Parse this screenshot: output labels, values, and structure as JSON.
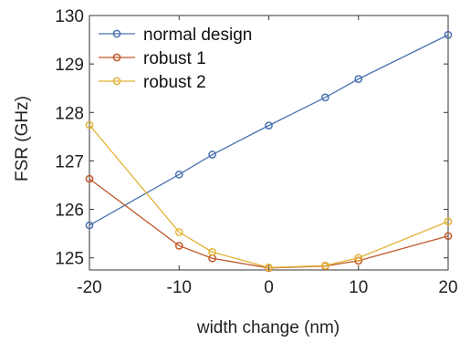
{
  "chart_data": {
    "type": "line",
    "title": "",
    "xlabel": "width change (nm)",
    "ylabel": "FSR (GHz)",
    "xlim": [
      -20,
      20
    ],
    "ylim": [
      124.75,
      130
    ],
    "x_ticks": [
      -20,
      -10,
      0,
      10,
      20
    ],
    "y_ticks": [
      125,
      126,
      127,
      128,
      129,
      130
    ],
    "grid": false,
    "legend_position": "top-left",
    "series": [
      {
        "name": "normal design",
        "color": "#4a72b0",
        "marker": "circle",
        "x": [
          -20,
          -10,
          -6.3,
          0,
          6.3,
          10,
          20
        ],
        "y": [
          125.67,
          126.72,
          127.13,
          127.73,
          128.31,
          128.69,
          129.6
        ]
      },
      {
        "name": "robust 1",
        "color": "#c0582a",
        "marker": "circle",
        "x": [
          -20,
          -10,
          -6.3,
          0,
          6.3,
          10,
          20
        ],
        "y": [
          126.63,
          125.25,
          124.99,
          124.79,
          124.83,
          124.94,
          125.45
        ]
      },
      {
        "name": "robust 2",
        "color": "#e2b235",
        "marker": "circle",
        "x": [
          -20,
          -10,
          -6.3,
          0,
          6.3,
          10,
          20
        ],
        "y": [
          127.74,
          125.53,
          125.12,
          124.8,
          124.84,
          125.0,
          125.75
        ]
      }
    ]
  }
}
